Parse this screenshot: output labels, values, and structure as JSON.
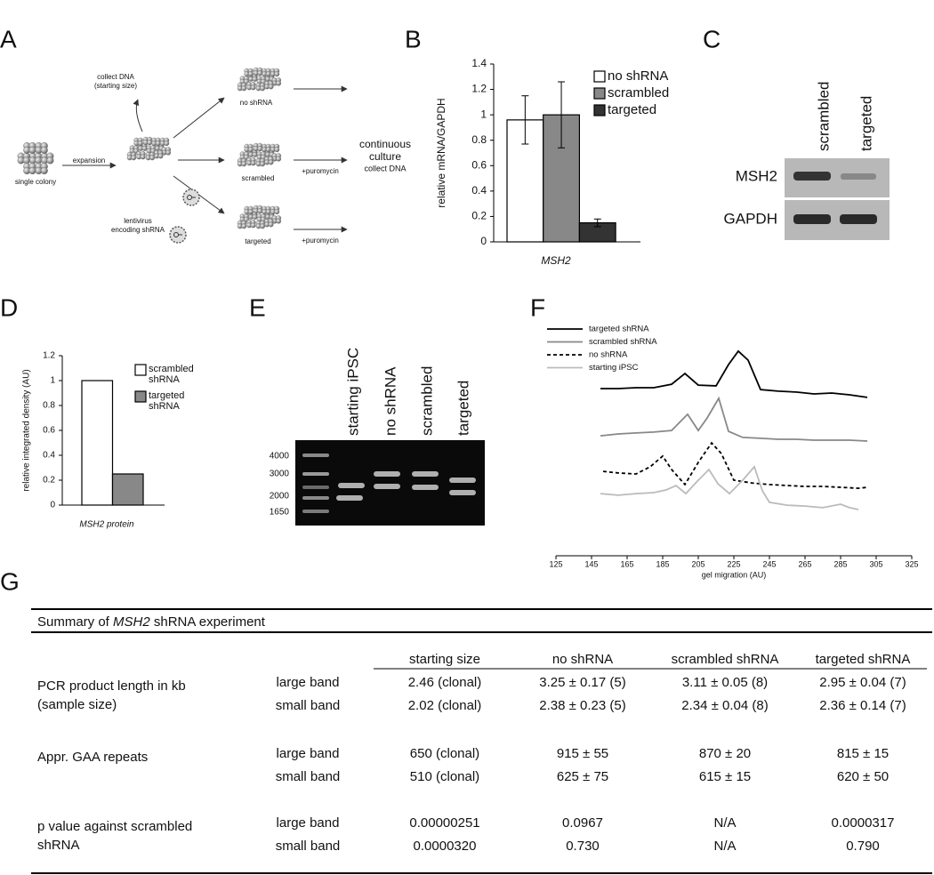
{
  "panel_labels": [
    "A",
    "B",
    "C",
    "D",
    "E",
    "F",
    "G"
  ],
  "panel_a": {
    "single_colony": "single colony",
    "expansion": "expansion",
    "collect_dna": "collect DNA",
    "starting_size": "(starting size)",
    "no_shrna": "no shRNA",
    "scrambled": "scrambled",
    "targeted": "targeted",
    "lentivirus": "lentivirus",
    "encoding": "encoding shRNA",
    "puromycin_1": "+puromycin",
    "puromycin_2": "+puromycin",
    "continuous": "continuous",
    "culture": "culture",
    "collect_dna_2": "collect DNA"
  },
  "chart_data": [
    {
      "type": "bar",
      "ylabel": "relative mRNA/GAPDH",
      "xlabel": "MSH2",
      "categories": [
        "MSH2"
      ],
      "series": [
        {
          "name": "no shRNA",
          "color": "#ffffff",
          "values": [
            0.96
          ],
          "errors": [
            0.19
          ]
        },
        {
          "name": "scrambled",
          "color": "#888888",
          "values": [
            1.0
          ],
          "errors": [
            0.26
          ]
        },
        {
          "name": "targeted",
          "color": "#333333",
          "values": [
            0.15
          ],
          "errors": [
            0.03
          ]
        }
      ],
      "ylim": [
        0,
        1.4
      ],
      "yticks": [
        0,
        0.2,
        0.4,
        0.6,
        0.8,
        1,
        1.2,
        1.4
      ],
      "legend": "upper right"
    },
    {
      "type": "bar",
      "ylabel": "relative integrated density (AU)",
      "xlabel": "MSH2 protein",
      "categories": [
        "MSH2 protein"
      ],
      "series": [
        {
          "name": "scrambled shRNA",
          "color": "#ffffff",
          "values": [
            1
          ]
        },
        {
          "name": "targeted shRNA",
          "color": "#888888",
          "values": [
            0.25
          ]
        }
      ],
      "ylim": [
        0,
        1.2
      ],
      "yticks": [
        0,
        0.2,
        0.4,
        0.6,
        0.8,
        1,
        1.2
      ],
      "legend": "upper right"
    },
    {
      "type": "line",
      "xlabel": "gel migration (AU)",
      "xlim": [
        125,
        325
      ],
      "xticks": [
        125,
        145,
        165,
        185,
        205,
        225,
        245,
        265,
        285,
        305,
        325
      ],
      "ylim": [
        0,
        100
      ],
      "legend": "upper left",
      "series": [
        {
          "name": "targeted shRNA",
          "color": "#000000",
          "dash": false,
          "x": [
            150,
            160,
            170,
            180,
            190,
            197.5,
            205,
            215,
            222,
            227.5,
            233,
            240,
            250,
            260,
            270,
            280,
            290,
            300
          ],
          "values": [
            72.3,
            72.3,
            72.7,
            72.7,
            74.2,
            78.8,
            73.8,
            73.5,
            82.7,
            88.5,
            84.6,
            71.9,
            71.2,
            70.8,
            70,
            70.4,
            69.6,
            68.5
          ]
        },
        {
          "name": "scrambled shRNA",
          "color": "#888888",
          "dash": false,
          "x": [
            150,
            160,
            170,
            180,
            190,
            194,
            199,
            205,
            210,
            216.5,
            222,
            230,
            240,
            250,
            260,
            270,
            280,
            290,
            300
          ],
          "values": [
            51.9,
            52.7,
            53.1,
            53.5,
            54.2,
            57.3,
            61.2,
            54.2,
            59.6,
            68.1,
            53.8,
            51.2,
            50.8,
            50.4,
            50.4,
            50,
            50,
            50,
            49.6
          ]
        },
        {
          "name": "no shRNA",
          "color": "#000000",
          "dash": true,
          "x": [
            151.5,
            160,
            170,
            178,
            185,
            190,
            197.5,
            205,
            212.5,
            218,
            225,
            235,
            245,
            255,
            265,
            275,
            285,
            295,
            300
          ],
          "values": [
            36.5,
            35.8,
            35.4,
            38.5,
            43.1,
            37.3,
            30.8,
            40.4,
            48.8,
            44.2,
            32.7,
            31.5,
            30.8,
            30.4,
            30,
            30,
            29.6,
            29.2,
            29.6
          ]
        },
        {
          "name": "starting iPSC",
          "color": "#bbbbbb",
          "dash": false,
          "x": [
            150,
            160,
            170,
            180,
            187,
            192.5,
            198,
            205,
            211,
            216,
            222.5,
            230,
            236.5,
            241,
            245,
            255,
            265,
            275,
            285,
            290,
            295
          ],
          "values": [
            26.9,
            26.2,
            26.9,
            27.3,
            28.5,
            30.4,
            26.9,
            32.7,
            37.3,
            31.2,
            26.9,
            32.7,
            38.5,
            28.1,
            23.1,
            21.9,
            21.5,
            20.8,
            22.3,
            20.8,
            20
          ]
        }
      ]
    }
  ],
  "panel_c": {
    "lanes": [
      "scrambled",
      "targeted"
    ],
    "rows": [
      "MSH2",
      "GAPDH"
    ]
  },
  "panel_e": {
    "lanes": [
      "starting iPSC",
      "no shRNA",
      "scrambled",
      "targeted"
    ],
    "markers": [
      4000,
      3000,
      2000,
      1650
    ]
  },
  "table": {
    "title_parts": [
      "Summary of ",
      "MSH2",
      " shRNA experiment"
    ],
    "columns": [
      "starting size",
      "no shRNA",
      "scrambled shRNA",
      "targeted shRNA"
    ],
    "groups": [
      {
        "label_lines": [
          "PCR product length in kb",
          "(sample size)"
        ],
        "rows": [
          {
            "band": "large band",
            "cells": [
              "2.46 (clonal)",
              "3.25 ± 0.17 (5)",
              "3.11 ± 0.05 (8)",
              "2.95 ± 0.04 (7)"
            ]
          },
          {
            "band": "small band",
            "cells": [
              "2.02 (clonal)",
              "2.38 ± 0.23 (5)",
              "2.34 ± 0.04 (8)",
              "2.36 ± 0.14 (7)"
            ]
          }
        ]
      },
      {
        "label_lines": [
          "Appr. GAA repeats"
        ],
        "rows": [
          {
            "band": "large band",
            "cells": [
              "650 (clonal)",
              "915 ± 55",
              "870 ± 20",
              "815 ± 15"
            ]
          },
          {
            "band": "small band",
            "cells": [
              "510 (clonal)",
              "625 ± 75",
              "615 ± 15",
              "620 ± 50"
            ]
          }
        ]
      },
      {
        "label_lines": [
          "p value against scrambled",
          "shRNA"
        ],
        "rows": [
          {
            "band": "large band",
            "cells": [
              "0.00000251",
              "0.0967",
              "N/A",
              "0.0000317"
            ]
          },
          {
            "band": "small band",
            "cells": [
              "0.0000320",
              "0.730",
              "N/A",
              "0.790"
            ]
          }
        ]
      }
    ]
  }
}
